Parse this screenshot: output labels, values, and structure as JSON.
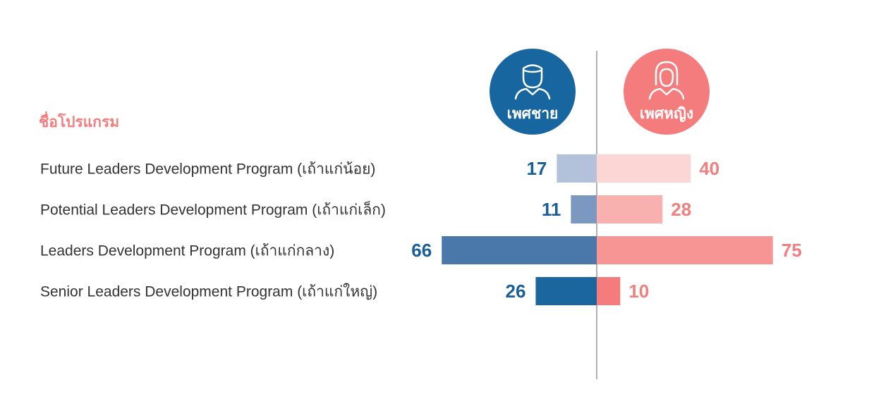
{
  "chart_data": {
    "type": "bar",
    "orientation": "horizontal-diverging",
    "heading": "ชื่อโปรแกรม",
    "categories": [
      "Future Leaders Development Program (เถ้าแก่น้อย)",
      "Potential Leaders Development Program (เถ้าแก่เล็ก)",
      "Leaders Development Program (เถ้าแก่กลาง)",
      "Senior Leaders Development Program (เถ้าแก่ใหญ่)"
    ],
    "series": [
      {
        "name": "เพศชาย",
        "side": "left",
        "icon": "male-user-icon",
        "values": [
          17,
          11,
          66,
          26
        ],
        "colors": [
          "#b3c1da",
          "#7a98c0",
          "#4a78aa",
          "#1c66a0"
        ],
        "label_color": "#1a5f98",
        "badge_color": "#1766a0"
      },
      {
        "name": "เพศหญิง",
        "side": "right",
        "icon": "female-user-icon",
        "values": [
          40,
          28,
          75,
          10
        ],
        "colors": [
          "#fbd6d4",
          "#f8b1ae",
          "#f69593",
          "#f47c7d"
        ],
        "label_color": "#f08080",
        "badge_color": "#f47c7d"
      }
    ],
    "heading_color": "#f47c7d",
    "xlim": [
      0,
      75
    ],
    "grid": false
  }
}
